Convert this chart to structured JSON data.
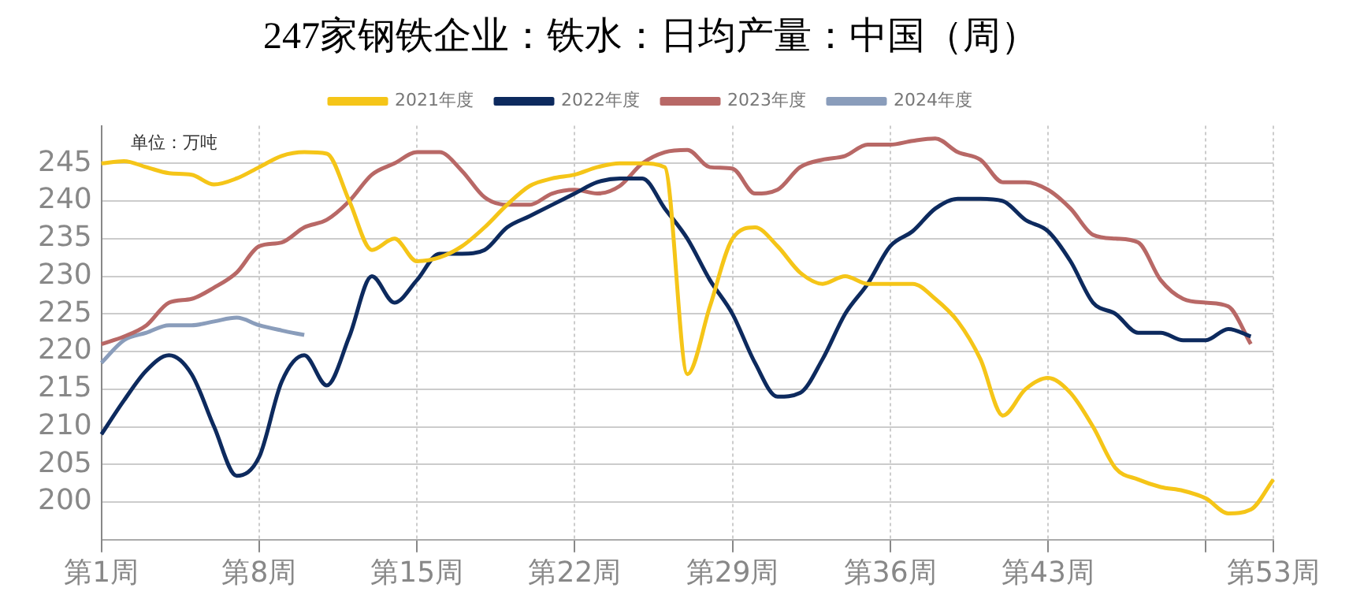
{
  "chart_data": {
    "type": "line",
    "title": "247家钢铁企业：铁水：日均产量：中国（周）",
    "annotations": [
      "单位：万吨"
    ],
    "categories": [
      "第1周",
      null,
      null,
      null,
      null,
      null,
      null,
      "第8周",
      null,
      null,
      null,
      null,
      null,
      null,
      "第15周",
      null,
      null,
      null,
      null,
      null,
      null,
      "第22周",
      null,
      null,
      null,
      null,
      null,
      null,
      "第29周",
      null,
      null,
      null,
      null,
      null,
      null,
      "第36周",
      null,
      null,
      null,
      null,
      null,
      null,
      "第43周",
      null,
      null,
      null,
      null,
      null,
      null,
      null,
      null,
      null,
      "第53周"
    ],
    "series": [
      {
        "name": "2021年度",
        "color": "#f5c518",
        "values": [
          245,
          245.3,
          244.5,
          243.7,
          243.5,
          242.2,
          243,
          244.5,
          246,
          246.5,
          246.3,
          240,
          233.5,
          235,
          232,
          232.5,
          234,
          236.5,
          239.5,
          242,
          243,
          243.5,
          244.5,
          245,
          245,
          244.5,
          217,
          226,
          235,
          236.5,
          234,
          230.5,
          229,
          230,
          229,
          229,
          229,
          227,
          224,
          219,
          211.5,
          215,
          216.5,
          214.5,
          210,
          204.5,
          203,
          202,
          201.5,
          200.5,
          198.5,
          199,
          203
        ]
      },
      {
        "name": "2022年度",
        "color": "#0d2a5e",
        "values": [
          209,
          213.5,
          217.5,
          219.5,
          217,
          210,
          203.5,
          206,
          216,
          219.5,
          215.5,
          222,
          230,
          226.5,
          229.5,
          233,
          233,
          233.5,
          236.5,
          238,
          239.5,
          241,
          242.5,
          243,
          243,
          239,
          235,
          229.5,
          225,
          218.5,
          214,
          214.5,
          219,
          225,
          229,
          234,
          236,
          239,
          240.3,
          240.3,
          240,
          237.5,
          236,
          232,
          226.5,
          225,
          222.5,
          222.5,
          221.5,
          221.5,
          223,
          222,
          null
        ]
      },
      {
        "name": "2023年度",
        "color": "#b86866",
        "values": [
          221,
          222,
          223.5,
          226.5,
          227,
          228.5,
          230.5,
          234,
          234.5,
          236.5,
          237.5,
          240,
          243.5,
          245,
          246.5,
          246.5,
          244,
          240.5,
          239.5,
          239.5,
          241,
          241.5,
          241,
          242,
          245,
          246.5,
          246.8,
          244.5,
          244.3,
          241,
          241.5,
          244.5,
          245.5,
          246,
          247.5,
          247.5,
          248,
          248.3,
          246.5,
          245.5,
          242.5,
          242.5,
          241.5,
          239,
          235.5,
          235,
          234.5,
          229.5,
          227,
          226.5,
          226,
          221,
          null
        ]
      },
      {
        "name": "2024年度",
        "color": "#8a9dbb",
        "values": [
          218.5,
          221.5,
          222.5,
          223.5,
          223.5,
          224,
          224.5,
          223.5,
          222.8,
          222.2,
          null,
          null,
          null,
          null,
          null,
          null,
          null,
          null,
          null,
          null,
          null,
          null,
          null,
          null,
          null,
          null,
          null,
          null,
          null,
          null,
          null,
          null,
          null,
          null,
          null,
          null,
          null,
          null,
          null,
          null,
          null,
          null,
          null,
          null,
          null,
          null,
          null,
          null,
          null,
          null,
          null,
          null,
          null
        ]
      }
    ],
    "ylim": [
      195,
      250
    ],
    "yticks": [
      200,
      205,
      210,
      215,
      220,
      225,
      230,
      235,
      240,
      245
    ],
    "grid": true,
    "legend": "top",
    "marker": "none",
    "line_style": "solid"
  }
}
